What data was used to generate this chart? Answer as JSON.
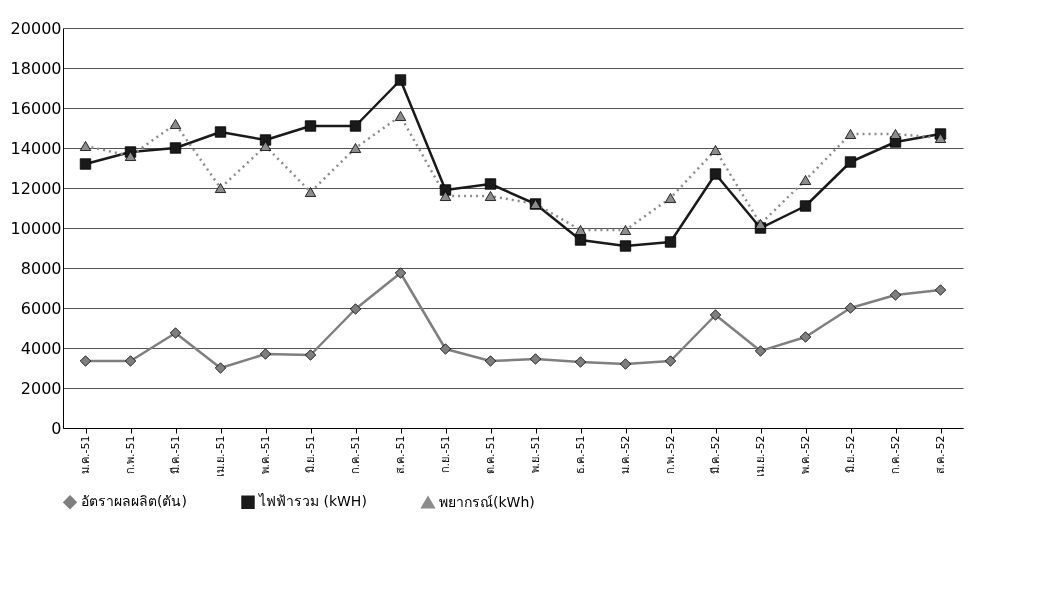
{
  "chart_data": {
    "type": "line",
    "categories": [
      "ม.ค.-51",
      "ก.พ.-51",
      "มี.ค.-51",
      "เม.ย.-51",
      "พ.ค.-51",
      "มิ.ย.-51",
      "ก.ค.-51",
      "ส.ค.-51",
      "ก.ย.-51",
      "ต.ค.-51",
      "พ.ย.-51",
      "ธ.ค.-51",
      "ม.ค.-52",
      "ก.พ.-52",
      "มี.ค.-52",
      "เม.ย.-52",
      "พ.ค.-52",
      "มิ.ย.-52",
      "ก.ค.-52",
      "ส.ค.-52"
    ],
    "series": [
      {
        "name": "อัตราผลผลิต(ตัน)",
        "color": "#7f7f7f",
        "marker": "diamond",
        "line_style": "solid",
        "values": [
          3350,
          3350,
          4750,
          3000,
          3700,
          3650,
          5950,
          7750,
          3950,
          3350,
          3450,
          3300,
          3200,
          3350,
          5650,
          3850,
          4550,
          6000,
          6650,
          6900
        ]
      },
      {
        "name": "ไฟฟ้ารวม (kWH)",
        "color": "#1a1a1a",
        "marker": "square",
        "line_style": "solid",
        "values": [
          13200,
          13800,
          14000,
          14800,
          14400,
          15100,
          15100,
          17400,
          11900,
          12200,
          11200,
          9400,
          9100,
          9300,
          12700,
          10000,
          11100,
          13300,
          14300,
          14700
        ]
      },
      {
        "name": "พยากรณ์(kWh)",
        "color": "#8c8c8c",
        "marker": "triangle",
        "line_style": "dotted",
        "values": [
          14100,
          13600,
          15200,
          12000,
          14100,
          11800,
          14000,
          15600,
          11600,
          11600,
          11200,
          9900,
          9900,
          11500,
          13900,
          10200,
          12400,
          14700,
          14700,
          14500
        ]
      }
    ],
    "ylim": [
      0,
      20000
    ],
    "yticks": [
      0,
      2000,
      4000,
      6000,
      8000,
      10000,
      12000,
      14000,
      16000,
      18000,
      20000
    ],
    "grid": "y",
    "legend": "bottom"
  }
}
